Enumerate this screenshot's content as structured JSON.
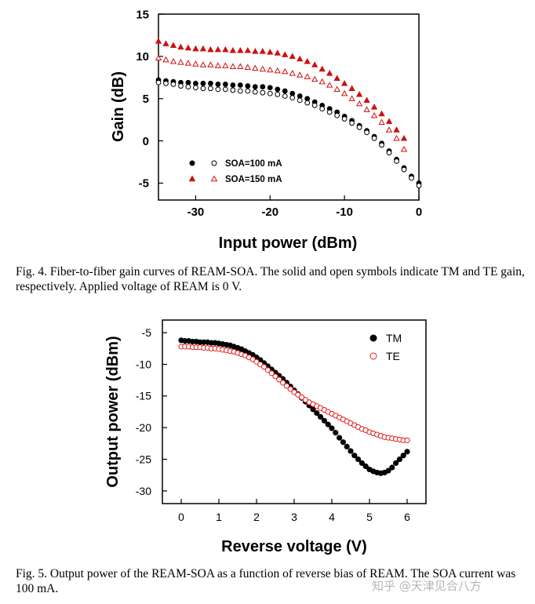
{
  "chart_data": [
    {
      "type": "scatter",
      "title": "",
      "xlabel": "Input power (dBm)",
      "ylabel": "Gain (dB)",
      "xlim": [
        -35,
        0
      ],
      "ylim": [
        -7,
        15
      ],
      "xticks": [
        -30,
        -20,
        -10,
        0
      ],
      "yticks": [
        -5,
        0,
        5,
        10,
        15
      ],
      "legend_position": "bottom-left",
      "series": [
        {
          "name": "SOA=100 mA TM",
          "legend": "SOA=100 mA",
          "marker": "filled-circle",
          "color": "#000000",
          "x": [
            -35,
            -34,
            -33,
            -32,
            -31,
            -30,
            -29,
            -28,
            -27,
            -26,
            -25,
            -24,
            -23,
            -22,
            -21,
            -20,
            -19,
            -18,
            -17,
            -16,
            -15,
            -14,
            -13,
            -12,
            -11,
            -10,
            -9,
            -8,
            -7,
            -6,
            -5,
            -4,
            -3,
            -2,
            -1,
            0
          ],
          "y": [
            7.2,
            7.1,
            7.0,
            6.9,
            6.9,
            6.8,
            6.8,
            6.8,
            6.7,
            6.7,
            6.6,
            6.6,
            6.5,
            6.4,
            6.4,
            6.3,
            6.1,
            5.9,
            5.6,
            5.3,
            5.0,
            4.6,
            4.2,
            3.8,
            3.4,
            2.9,
            2.4,
            1.8,
            1.2,
            0.5,
            -0.3,
            -1.2,
            -2.2,
            -3.2,
            -4.2,
            -5.0
          ]
        },
        {
          "name": "SOA=100 mA TE",
          "legend": "",
          "marker": "open-circle",
          "color": "#000000",
          "x": [
            -35,
            -34,
            -33,
            -32,
            -31,
            -30,
            -29,
            -28,
            -27,
            -26,
            -25,
            -24,
            -23,
            -22,
            -21,
            -20,
            -19,
            -18,
            -17,
            -16,
            -15,
            -14,
            -13,
            -12,
            -11,
            -10,
            -9,
            -8,
            -7,
            -6,
            -5,
            -4,
            -3,
            -2,
            -1,
            0
          ],
          "y": [
            6.9,
            6.8,
            6.7,
            6.5,
            6.4,
            6.3,
            6.2,
            6.2,
            6.1,
            6.1,
            6.0,
            5.9,
            5.9,
            5.8,
            5.7,
            5.6,
            5.5,
            5.3,
            5.1,
            4.8,
            4.5,
            4.2,
            3.8,
            3.4,
            3.0,
            2.6,
            2.1,
            1.6,
            1.0,
            0.3,
            -0.5,
            -1.4,
            -2.4,
            -3.4,
            -4.4,
            -5.3
          ]
        },
        {
          "name": "SOA=150 mA TM",
          "legend": "SOA=150 mA",
          "marker": "filled-triangle",
          "color": "#cc1111",
          "x": [
            -35,
            -34,
            -33,
            -32,
            -31,
            -30,
            -29,
            -28,
            -27,
            -26,
            -25,
            -24,
            -23,
            -22,
            -21,
            -20,
            -19,
            -18,
            -17,
            -16,
            -15,
            -14,
            -13,
            -12,
            -11,
            -10,
            -9,
            -8,
            -7,
            -6,
            -5,
            -4,
            -3,
            -2
          ],
          "y": [
            11.8,
            11.5,
            11.3,
            11.1,
            11.0,
            10.9,
            10.9,
            10.8,
            10.8,
            10.8,
            10.7,
            10.7,
            10.7,
            10.6,
            10.6,
            10.5,
            10.4,
            10.2,
            10.0,
            9.7,
            9.4,
            9.0,
            8.5,
            8.0,
            7.4,
            6.8,
            6.2,
            5.5,
            4.8,
            4.0,
            3.2,
            2.3,
            1.3,
            0.3
          ]
        },
        {
          "name": "SOA=150 mA TE",
          "legend": "",
          "marker": "open-triangle",
          "color": "#cc1111",
          "x": [
            -35,
            -34,
            -33,
            -32,
            -31,
            -30,
            -29,
            -28,
            -27,
            -26,
            -25,
            -24,
            -23,
            -22,
            -21,
            -20,
            -19,
            -18,
            -17,
            -16,
            -15,
            -14,
            -13,
            -12,
            -11,
            -10,
            -9,
            -8,
            -7,
            -6,
            -5,
            -4,
            -3,
            -2
          ],
          "y": [
            9.8,
            9.6,
            9.4,
            9.3,
            9.2,
            9.1,
            9.0,
            9.0,
            8.9,
            8.9,
            8.8,
            8.8,
            8.7,
            8.6,
            8.5,
            8.4,
            8.3,
            8.2,
            8.0,
            7.8,
            7.6,
            7.3,
            7.0,
            6.6,
            6.1,
            5.6,
            5.0,
            4.4,
            3.7,
            3.0,
            2.2,
            1.3,
            0.3,
            -1.0
          ]
        }
      ]
    },
    {
      "type": "scatter",
      "title": "",
      "xlabel": "Reverse voltage (V)",
      "ylabel": "Output power (dBm)",
      "xlim": [
        -0.5,
        6.5
      ],
      "ylim": [
        -32,
        -3
      ],
      "xticks": [
        0,
        1,
        2,
        3,
        4,
        5,
        6
      ],
      "yticks": [
        -5,
        -10,
        -15,
        -20,
        -25,
        -30
      ],
      "legend_position": "top-right",
      "series": [
        {
          "name": "TM",
          "legend": "TM",
          "marker": "filled-circle",
          "color": "#000000",
          "x": [
            0,
            0.1,
            0.2,
            0.3,
            0.4,
            0.5,
            0.6,
            0.7,
            0.8,
            0.9,
            1,
            1.1,
            1.2,
            1.3,
            1.4,
            1.5,
            1.6,
            1.7,
            1.8,
            1.9,
            2,
            2.1,
            2.2,
            2.3,
            2.4,
            2.5,
            2.6,
            2.7,
            2.8,
            2.9,
            3,
            3.1,
            3.2,
            3.3,
            3.4,
            3.5,
            3.6,
            3.7,
            3.8,
            3.9,
            4,
            4.1,
            4.2,
            4.3,
            4.4,
            4.5,
            4.6,
            4.7,
            4.8,
            4.9,
            5,
            5.1,
            5.2,
            5.3,
            5.4,
            5.5,
            5.6,
            5.7,
            5.8,
            5.9,
            6
          ],
          "y": [
            -6.2,
            -6.3,
            -6.3,
            -6.4,
            -6.4,
            -6.5,
            -6.5,
            -6.5,
            -6.6,
            -6.6,
            -6.7,
            -6.8,
            -6.9,
            -7.0,
            -7.2,
            -7.4,
            -7.6,
            -7.9,
            -8.2,
            -8.5,
            -8.9,
            -9.3,
            -9.8,
            -10.3,
            -10.8,
            -11.3,
            -11.8,
            -12.3,
            -12.9,
            -13.5,
            -14.1,
            -14.7,
            -15.3,
            -15.9,
            -16.5,
            -17.1,
            -17.7,
            -18.3,
            -18.9,
            -19.5,
            -20.1,
            -20.8,
            -21.6,
            -22.3,
            -23.0,
            -23.7,
            -24.4,
            -25.0,
            -25.6,
            -26.1,
            -26.6,
            -26.9,
            -27.1,
            -27.2,
            -27.1,
            -26.8,
            -26.3,
            -25.6,
            -25.0,
            -24.4,
            -23.8
          ]
        },
        {
          "name": "TE",
          "legend": "TE",
          "marker": "open-circle",
          "color": "#e41a1a",
          "x": [
            0,
            0.1,
            0.2,
            0.3,
            0.4,
            0.5,
            0.6,
            0.7,
            0.8,
            0.9,
            1,
            1.1,
            1.2,
            1.3,
            1.4,
            1.5,
            1.6,
            1.7,
            1.8,
            1.9,
            2,
            2.1,
            2.2,
            2.3,
            2.4,
            2.5,
            2.6,
            2.7,
            2.8,
            2.9,
            3,
            3.1,
            3.2,
            3.3,
            3.4,
            3.5,
            3.6,
            3.7,
            3.8,
            3.9,
            4,
            4.1,
            4.2,
            4.3,
            4.4,
            4.5,
            4.6,
            4.7,
            4.8,
            4.9,
            5,
            5.1,
            5.2,
            5.3,
            5.4,
            5.5,
            5.6,
            5.7,
            5.8,
            5.9,
            6
          ],
          "y": [
            -7.2,
            -7.2,
            -7.2,
            -7.3,
            -7.3,
            -7.3,
            -7.4,
            -7.4,
            -7.5,
            -7.5,
            -7.6,
            -7.7,
            -7.8,
            -7.9,
            -8.0,
            -8.2,
            -8.4,
            -8.6,
            -8.9,
            -9.2,
            -9.6,
            -10.0,
            -10.4,
            -10.9,
            -11.4,
            -11.9,
            -12.4,
            -12.9,
            -13.4,
            -13.9,
            -14.4,
            -14.8,
            -15.2,
            -15.6,
            -16.0,
            -16.3,
            -16.6,
            -16.9,
            -17.2,
            -17.5,
            -17.8,
            -18.1,
            -18.4,
            -18.7,
            -19.0,
            -19.3,
            -19.6,
            -19.9,
            -20.2,
            -20.4,
            -20.7,
            -20.9,
            -21.1,
            -21.3,
            -21.5,
            -21.6,
            -21.7,
            -21.8,
            -21.9,
            -22.0,
            -22.0
          ]
        }
      ]
    }
  ],
  "captions": {
    "fig4": "Fig. 4. Fiber-to-fiber gain curves of REAM-SOA. The solid and open symbols indicate TM and TE gain, respectively. Applied voltage of REAM is 0 V.",
    "fig5": "Fig. 5. Output power of the REAM-SOA as a function of reverse bias of REAM. The SOA current was 100 mA."
  },
  "watermark": "知乎 @天津见合八方"
}
